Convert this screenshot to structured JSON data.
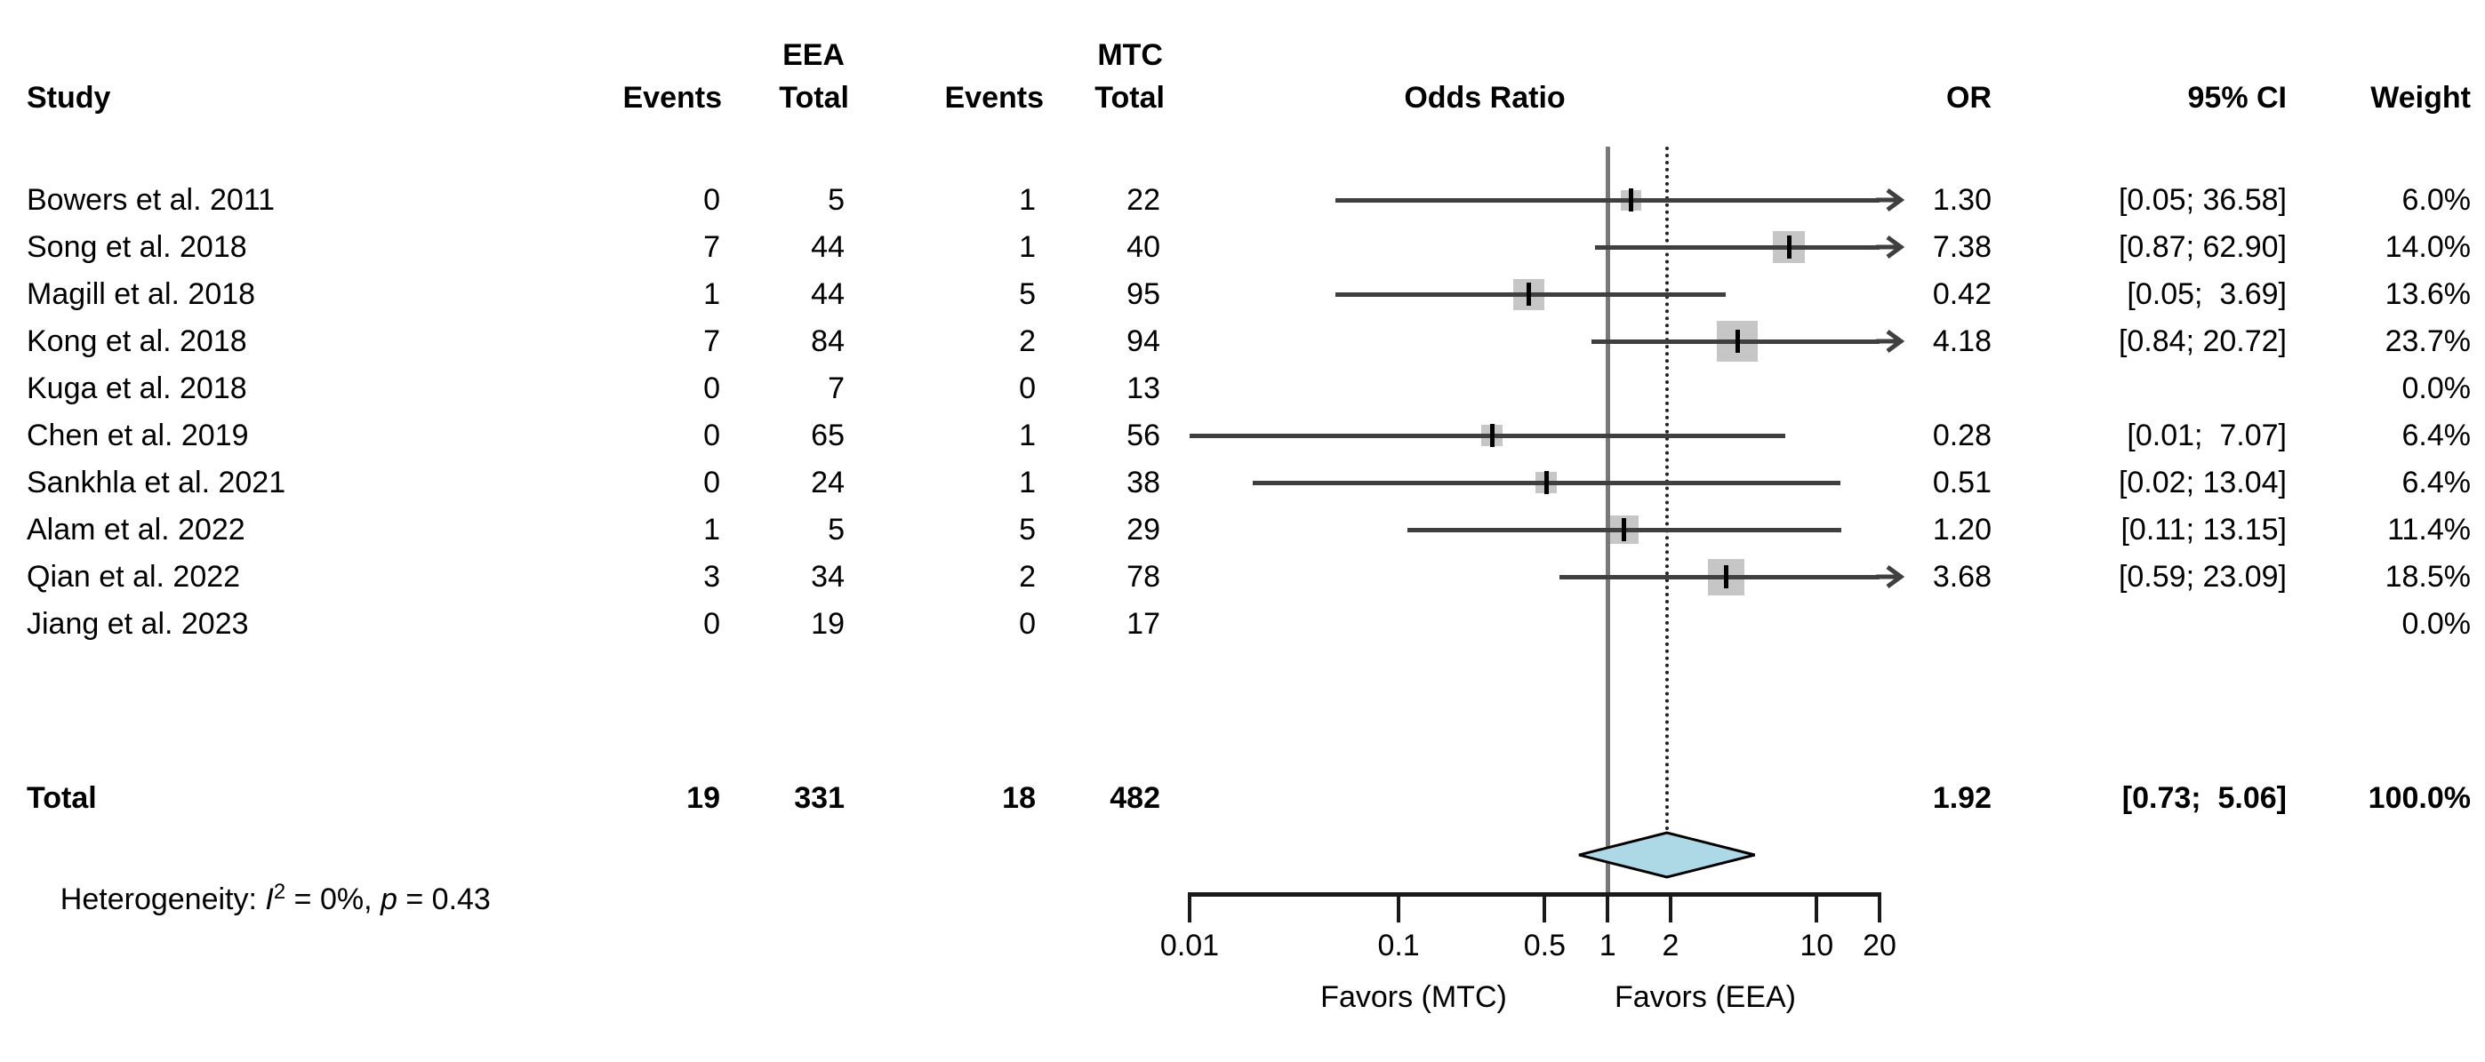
{
  "header": {
    "col_study": "Study",
    "group1_label": "EEA",
    "group2_label": "MTC",
    "col_events1": "Events",
    "col_total1": "Total",
    "col_events2": "Events",
    "col_total2": "Total",
    "col_plot": "Odds Ratio",
    "col_or": "OR",
    "col_ci": "95% CI",
    "col_weight": "Weight"
  },
  "chart_data": {
    "type": "forest",
    "x_scale": "log",
    "axis_range": [
      0.01,
      20
    ],
    "axis_ticks": [
      0.01,
      0.1,
      0.5,
      1,
      2,
      10,
      20
    ],
    "ref_line": 1,
    "pooled_line": 1.92,
    "xlabel_left": "Favors (MTC)",
    "xlabel_right": "Favors (EEA)",
    "studies": [
      {
        "study": "Bowers et al. 2011",
        "events1": "0",
        "total1": "5",
        "events2": "1",
        "total2": "22",
        "or": 1.3,
        "ci_low": 0.05,
        "ci_high": 36.58,
        "or_text": "1.30",
        "ci_text": "[0.05; 36.58]",
        "weight_text": "6.0%",
        "weight_pct": 6.0
      },
      {
        "study": "Song et al. 2018",
        "events1": "7",
        "total1": "44",
        "events2": "1",
        "total2": "40",
        "or": 7.38,
        "ci_low": 0.87,
        "ci_high": 62.9,
        "or_text": "7.38",
        "ci_text": "[0.87; 62.90]",
        "weight_text": "14.0%",
        "weight_pct": 14.0
      },
      {
        "study": "Magill et al. 2018",
        "events1": "1",
        "total1": "44",
        "events2": "5",
        "total2": "95",
        "or": 0.42,
        "ci_low": 0.05,
        "ci_high": 3.69,
        "or_text": "0.42",
        "ci_text": "[0.05;  3.69]",
        "weight_text": "13.6%",
        "weight_pct": 13.6
      },
      {
        "study": "Kong et al. 2018",
        "events1": "7",
        "total1": "84",
        "events2": "2",
        "total2": "94",
        "or": 4.18,
        "ci_low": 0.84,
        "ci_high": 20.72,
        "or_text": "4.18",
        "ci_text": "[0.84; 20.72]",
        "weight_text": "23.7%",
        "weight_pct": 23.7
      },
      {
        "study": "Kuga et al. 2018",
        "events1": "0",
        "total1": "7",
        "events2": "0",
        "total2": "13",
        "or": null,
        "ci_low": null,
        "ci_high": null,
        "or_text": "",
        "ci_text": "",
        "weight_text": "0.0%",
        "weight_pct": 0
      },
      {
        "study": "Chen et al. 2019",
        "events1": "0",
        "total1": "65",
        "events2": "1",
        "total2": "56",
        "or": 0.28,
        "ci_low": 0.01,
        "ci_high": 7.07,
        "or_text": "0.28",
        "ci_text": "[0.01;  7.07]",
        "weight_text": "6.4%",
        "weight_pct": 6.4
      },
      {
        "study": "Sankhla et al. 2021",
        "events1": "0",
        "total1": "24",
        "events2": "1",
        "total2": "38",
        "or": 0.51,
        "ci_low": 0.02,
        "ci_high": 13.04,
        "or_text": "0.51",
        "ci_text": "[0.02; 13.04]",
        "weight_text": "6.4%",
        "weight_pct": 6.4
      },
      {
        "study": "Alam et al. 2022",
        "events1": "1",
        "total1": "5",
        "events2": "5",
        "total2": "29",
        "or": 1.2,
        "ci_low": 0.11,
        "ci_high": 13.15,
        "or_text": "1.20",
        "ci_text": "[0.11; 13.15]",
        "weight_text": "11.4%",
        "weight_pct": 11.4
      },
      {
        "study": "Qian et al. 2022",
        "events1": "3",
        "total1": "34",
        "events2": "2",
        "total2": "78",
        "or": 3.68,
        "ci_low": 0.59,
        "ci_high": 23.09,
        "or_text": "3.68",
        "ci_text": "[0.59; 23.09]",
        "weight_text": "18.5%",
        "weight_pct": 18.5
      },
      {
        "study": "Jiang et al. 2023",
        "events1": "0",
        "total1": "19",
        "events2": "0",
        "total2": "17",
        "or": null,
        "ci_low": null,
        "ci_high": null,
        "or_text": "",
        "ci_text": "",
        "weight_text": "0.0%",
        "weight_pct": 0
      }
    ],
    "total": {
      "label": "Total",
      "events1": "19",
      "total1": "331",
      "events2": "18",
      "total2": "482",
      "or": 1.92,
      "ci_low": 0.73,
      "ci_high": 5.06,
      "or_text": "1.92",
      "ci_text": "[0.73;  5.06]",
      "weight_text": "100.0%"
    },
    "heterogeneity": {
      "prefix": "Heterogeneity: ",
      "i2_symbol": "I",
      "i2_sup": "2",
      "i2_rest": " = 0%, ",
      "p_symbol": "p",
      "p_rest": " = 0.43"
    }
  },
  "colors": {
    "square": "#c6c6c6",
    "ci_line": "#3f3f3f",
    "marker": "#000000",
    "ref_line": "#787878",
    "pooled_line": "#222222",
    "diamond_fill": "#add8e6",
    "diamond_stroke": "#000000",
    "axis": "#1a1a1a",
    "text": "#000000"
  }
}
